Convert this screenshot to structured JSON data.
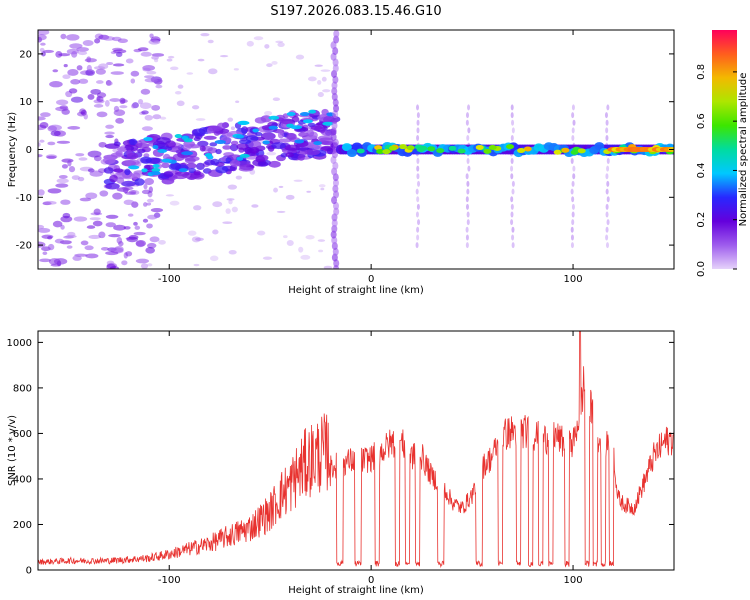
{
  "title": "S197.2026.083.15.46.G10",
  "chart_data": [
    {
      "type": "heatmap",
      "xlabel": "Height of straight line (km)",
      "ylabel": "Frequency (Hz)",
      "xlim": [
        -165,
        150
      ],
      "ylim": [
        -25,
        25
      ],
      "xticks": [
        -100,
        0,
        100
      ],
      "yticks": [
        -20,
        -10,
        0,
        10,
        20
      ],
      "colorbar": {
        "label": "Normalized spectral amplitude",
        "range": [
          0,
          0.97
        ],
        "ticks": [
          0,
          0.2,
          0.4,
          0.6,
          0.8
        ]
      },
      "features": [
        {
          "name": "scattered noise, low heights",
          "x_range": [
            -165,
            -110
          ],
          "freq_range": [
            -25,
            25
          ]
        },
        {
          "name": "rising diagonal band",
          "x_range": [
            -130,
            -20
          ],
          "freq_range": [
            -10,
            8
          ]
        },
        {
          "name": "vertical streak",
          "x": -18,
          "freq_range": [
            -25,
            25
          ]
        },
        {
          "name": "steady tone",
          "x_range": [
            -15,
            150
          ],
          "freq": 0
        },
        {
          "name": "vertical streaks",
          "x": [
            23,
            48,
            70,
            100,
            117
          ],
          "freq_range": [
            -20,
            10
          ]
        }
      ]
    },
    {
      "type": "line",
      "xlabel": "Height of straight line (km)",
      "ylabel": "SNR (10 * v/v)",
      "xlim": [
        -165,
        150
      ],
      "ylim": [
        0,
        1050
      ],
      "xticks": [
        -100,
        0,
        100
      ],
      "yticks": [
        0,
        200,
        400,
        600,
        800,
        1000
      ],
      "color": "#e8322f",
      "series": [
        {
          "name": "SNR",
          "x": [
            -165,
            -150,
            -130,
            -110,
            -100,
            -90,
            -80,
            -70,
            -60,
            -50,
            -45,
            -40,
            -35,
            -30,
            -25,
            -20,
            -15,
            -10,
            -5,
            0,
            5,
            10,
            15,
            20,
            25,
            30,
            35,
            40,
            45,
            50,
            55,
            60,
            65,
            70,
            75,
            80,
            85,
            90,
            95,
            100,
            103,
            106,
            109,
            112,
            115,
            118,
            120,
            122,
            125,
            130,
            135,
            140,
            145,
            150
          ],
          "y": [
            30,
            35,
            35,
            45,
            60,
            80,
            100,
            130,
            160,
            220,
            280,
            320,
            380,
            420,
            440,
            450,
            470,
            480,
            480,
            490,
            520,
            560,
            560,
            500,
            500,
            410,
            380,
            300,
            270,
            330,
            450,
            500,
            590,
            610,
            610,
            600,
            570,
            600,
            560,
            550,
            680,
            850,
            700,
            580,
            560,
            560,
            540,
            320,
            290,
            270,
            380,
            500,
            560,
            580
          ]
        }
      ],
      "dropouts": [
        [
          -17,
          -14
        ],
        [
          -8,
          -5
        ],
        [
          2,
          4
        ],
        [
          12,
          14
        ],
        [
          17,
          19
        ],
        [
          22,
          24
        ],
        [
          33,
          36
        ],
        [
          52,
          55
        ],
        [
          63,
          65
        ],
        [
          72,
          74
        ],
        [
          78,
          80
        ],
        [
          83,
          85
        ],
        [
          88,
          90
        ],
        [
          96,
          98
        ],
        [
          106,
          108
        ],
        [
          110,
          112
        ],
        [
          114,
          116
        ],
        [
          118,
          120
        ]
      ]
    }
  ]
}
